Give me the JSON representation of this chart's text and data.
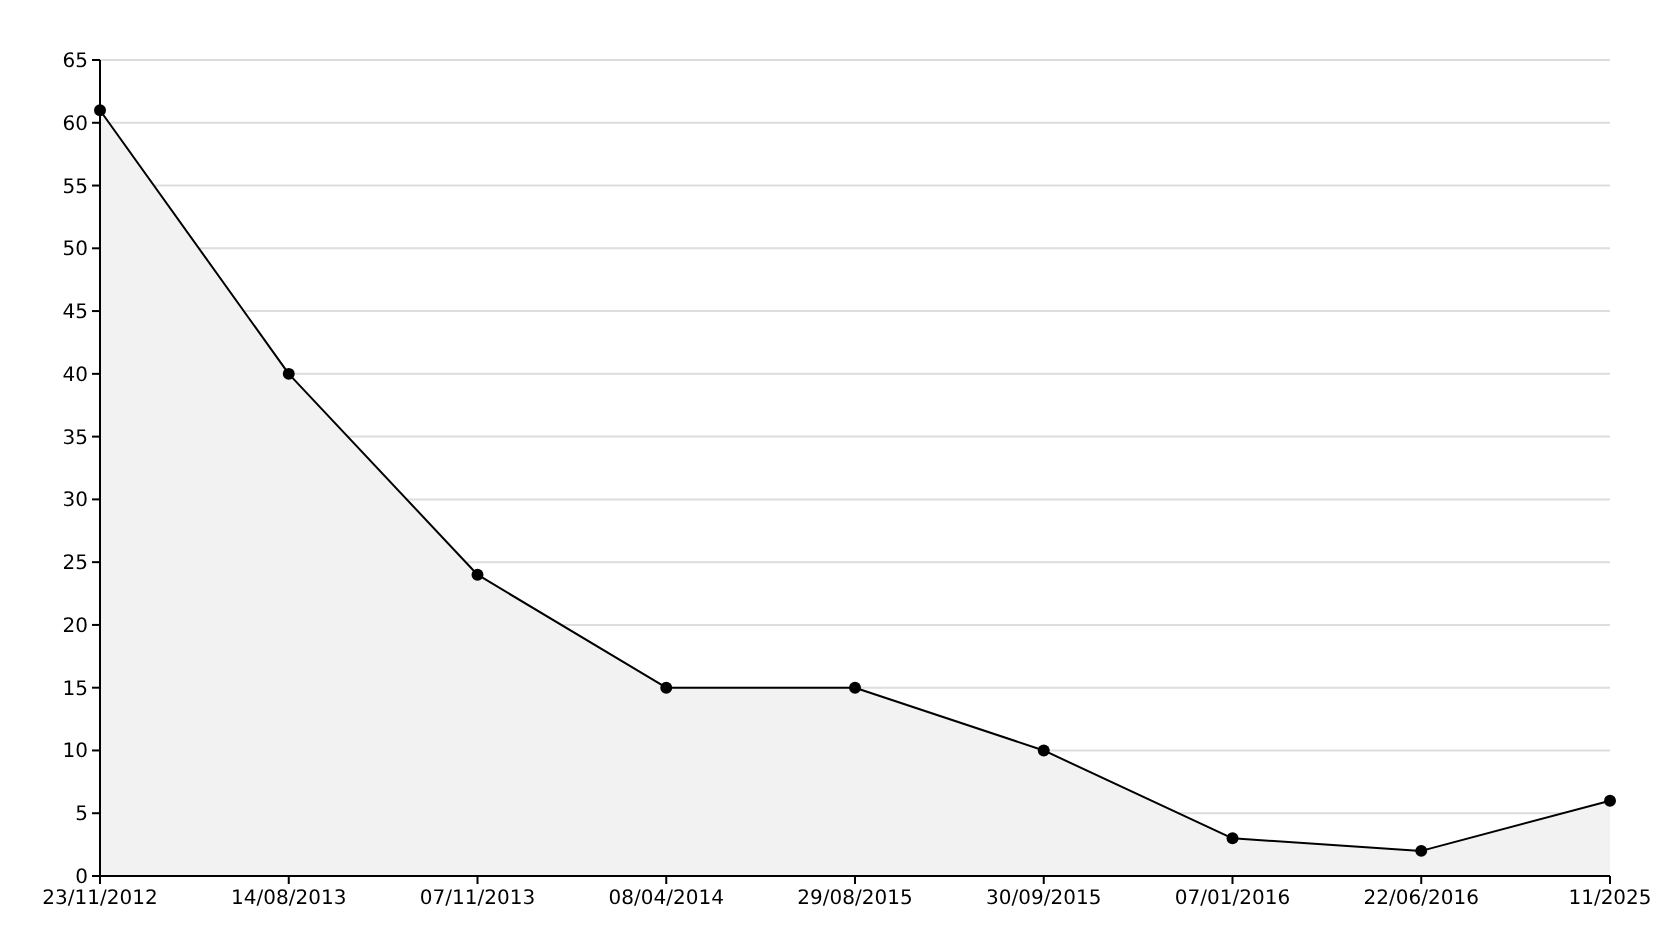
{
  "chart_data": {
    "type": "area",
    "categories": [
      "23/11/2012",
      "14/08/2013",
      "07/11/2013",
      "08/04/2014",
      "29/08/2015",
      "30/09/2015",
      "07/01/2016",
      "22/06/2016",
      "11/2025"
    ],
    "series": [
      {
        "color": "#000000",
        "values": [
          61,
          40,
          24,
          15,
          15,
          10,
          3,
          2,
          6
        ]
      }
    ],
    "ylim": [
      0,
      65
    ],
    "yticks": [
      0,
      5,
      10,
      15,
      20,
      25,
      30,
      35,
      40,
      45,
      50,
      55,
      60,
      65
    ],
    "grid": "y",
    "marker": "circle",
    "line_style": "solid"
  }
}
